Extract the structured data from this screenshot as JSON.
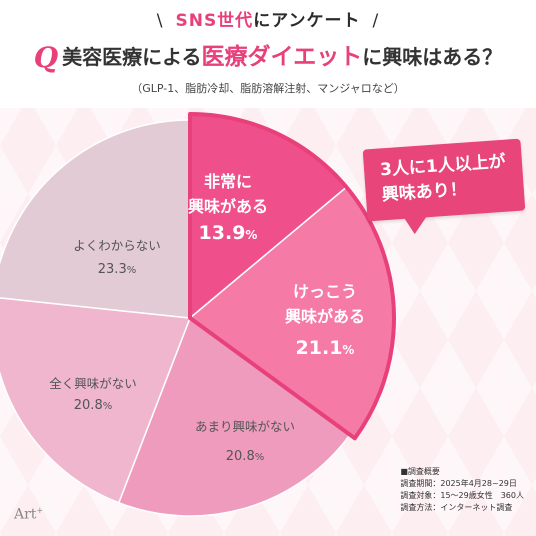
{
  "header": {
    "tag_main": "SNS世代",
    "tag_rest": "にアンケート",
    "slash_left": "\\",
    "slash_right": "/",
    "q_mark": "Q",
    "question_pre": "美容医療による",
    "question_accent": "医療ダイエット",
    "question_post": "に興味はある？",
    "note": "（GLP-1、脂肪冷却、脂肪溶解注射、マンジャロなど）"
  },
  "callout": "3人に1人以上が興味あり！",
  "meta": {
    "title": "■調査概要",
    "period": "調査期間：2025年4月28~29日",
    "target": "調査対象：15～29歳女性　360人",
    "method": "調査方法：インターネット調査"
  },
  "logo": "Art",
  "logo_sup": "+",
  "colors": {
    "accent": "#e8407a",
    "slice_1": "#ef4f8a",
    "slice_2": "#f57aa6",
    "slice_3": "#ef9bbd",
    "slice_4": "#efb6ce",
    "slice_5": "#e3cbd5",
    "highlight_border": "#e8407a"
  },
  "chart_data": {
    "type": "pie",
    "title": "美容医療による医療ダイエットに興味はある？",
    "start_angle_deg": 0,
    "direction": "clockwise",
    "slices": [
      {
        "label_lines": [
          "非常に",
          "興味がある"
        ],
        "value": 13.9,
        "value_text": "13.9",
        "unit": "%",
        "highlighted": true
      },
      {
        "label_lines": [
          "けっこう",
          "興味がある"
        ],
        "value": 21.1,
        "value_text": "21.1",
        "unit": "%",
        "highlighted": true
      },
      {
        "label_lines": [
          "あまり興味がない"
        ],
        "value": 20.8,
        "value_text": "20.8",
        "unit": "%",
        "highlighted": false
      },
      {
        "label_lines": [
          "全く興味がない"
        ],
        "value": 20.8,
        "value_text": "20.8",
        "unit": "%",
        "highlighted": false
      },
      {
        "label_lines": [
          "よくわからない"
        ],
        "value": 23.3,
        "value_text": "23.3",
        "unit": "%",
        "highlighted": false
      }
    ]
  }
}
